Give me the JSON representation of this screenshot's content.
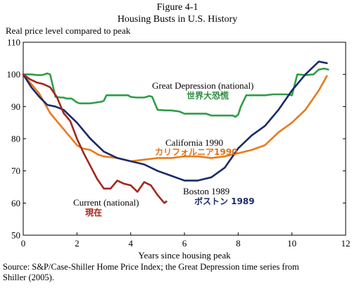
{
  "figure_number": "Figure 4-1",
  "chart_data": {
    "type": "line",
    "title": "Housing Busts in U.S. History",
    "ylabel": "Real price level compared to peak",
    "xlabel": "Years since housing peak",
    "xlim": [
      0,
      12
    ],
    "ylim": [
      50,
      110
    ],
    "xticks": [
      0,
      2,
      4,
      6,
      8,
      10,
      12
    ],
    "yticks": [
      50,
      60,
      70,
      80,
      90,
      100,
      110
    ],
    "grid": false,
    "source": "Source: S&P/Case-Shiller Home Price Index; the Great Depression time series from Shiller (2005).",
    "series": [
      {
        "name": "Great Depression (national)",
        "name_jp": "世界大恐慌",
        "color": "#2e9e47",
        "x": [
          0,
          0.3,
          0.5,
          0.7,
          0.9,
          1.0,
          1.2,
          1.4,
          1.5,
          1.6,
          1.8,
          2.0,
          2.1,
          2.5,
          2.9,
          3.0,
          3.1,
          3.3,
          3.6,
          3.9,
          4.0,
          4.2,
          4.5,
          4.7,
          4.8,
          5.0,
          5.3,
          5.5,
          5.8,
          6.0,
          6.3,
          6.5,
          6.8,
          7.0,
          7.3,
          7.5,
          7.8,
          7.9,
          8.0,
          8.1,
          8.3,
          8.6,
          9.0,
          9.3,
          9.5,
          9.8,
          10.0,
          10.2,
          10.5,
          10.8,
          11.0,
          11.2,
          11.35
        ],
        "y": [
          100,
          100,
          99.8,
          99.8,
          100.3,
          100,
          93,
          92.8,
          92.8,
          92.5,
          92.5,
          91.3,
          91,
          91,
          91.5,
          91.8,
          93.5,
          93.5,
          93.5,
          93.5,
          93,
          92.8,
          92.8,
          93.3,
          93,
          89,
          88.8,
          88.8,
          88.5,
          87.8,
          87.8,
          87.8,
          87.8,
          87.2,
          87.2,
          87.2,
          87.2,
          86.8,
          87.5,
          90,
          93.5,
          93.5,
          93.5,
          93.8,
          93.8,
          93.8,
          93.5,
          100,
          99.8,
          100,
          101.5,
          101.8,
          101.5
        ]
      },
      {
        "name": "California 1990",
        "name_jp": "カリフォルニア1990",
        "color": "#e87b1e",
        "x": [
          0,
          0.3,
          0.6,
          1.0,
          1.3,
          1.6,
          2.0,
          2.2,
          2.5,
          2.8,
          3.0,
          3.5,
          4.0,
          4.5,
          5.0,
          5.5,
          6.0,
          6.5,
          7.0,
          7.5,
          8.0,
          8.5,
          9.0,
          9.5,
          10.0,
          10.5,
          11.0,
          11.3
        ],
        "y": [
          100,
          97,
          94,
          88,
          85,
          82,
          78,
          77,
          76.5,
          75,
          74.5,
          74,
          73,
          73.5,
          74,
          74,
          74.5,
          74.5,
          74,
          74.5,
          75.5,
          76.5,
          78,
          82,
          85,
          89,
          95,
          99.5
        ]
      },
      {
        "name": "Boston 1989",
        "name_jp": "ボストン 1989",
        "color": "#1b2a6b",
        "x": [
          0,
          0.3,
          0.6,
          0.9,
          1.2,
          1.5,
          2.0,
          2.5,
          3.0,
          3.5,
          4.0,
          4.5,
          5.0,
          5.5,
          6.0,
          6.5,
          7.0,
          7.5,
          8.0,
          8.5,
          9.0,
          9.5,
          10.0,
          10.5,
          11.0,
          11.3
        ],
        "y": [
          100,
          96,
          93,
          90.5,
          90,
          89,
          85,
          80,
          76,
          74,
          73,
          72,
          70,
          68.5,
          67,
          67,
          68,
          71,
          77,
          81,
          84,
          89,
          95,
          100,
          104,
          103.5
        ]
      },
      {
        "name": "Current (national)",
        "name_jp": "現在",
        "color": "#a3281e",
        "x": [
          0,
          0.25,
          0.5,
          0.75,
          1.0,
          1.25,
          1.5,
          1.75,
          2.0,
          2.25,
          2.5,
          2.75,
          3.0,
          3.25,
          3.5,
          3.75,
          4.0,
          4.25,
          4.5,
          4.75,
          5.0,
          5.25,
          5.33
        ],
        "y": [
          100,
          98.5,
          97.5,
          97,
          96,
          93,
          88,
          85.5,
          80,
          75.5,
          71.5,
          67.5,
          64.5,
          64.5,
          67,
          66,
          65.5,
          63.5,
          66.5,
          65.5,
          62.5,
          60,
          60.5
        ]
      }
    ]
  },
  "labels": {
    "great_depression": "Great Depression (national)",
    "great_depression_jp": "世界大恐慌",
    "california": "California 1990",
    "california_jp": "カリフォルニア1990",
    "boston": "Boston 1989",
    "boston_jp": "ボストン 1989",
    "current": "Current (national)",
    "current_jp": "現在"
  },
  "source_line1": "Source: S&P/Case-Shiller Home Price Index; the Great Depression time series from",
  "source_line2": "Shiller (2005)."
}
